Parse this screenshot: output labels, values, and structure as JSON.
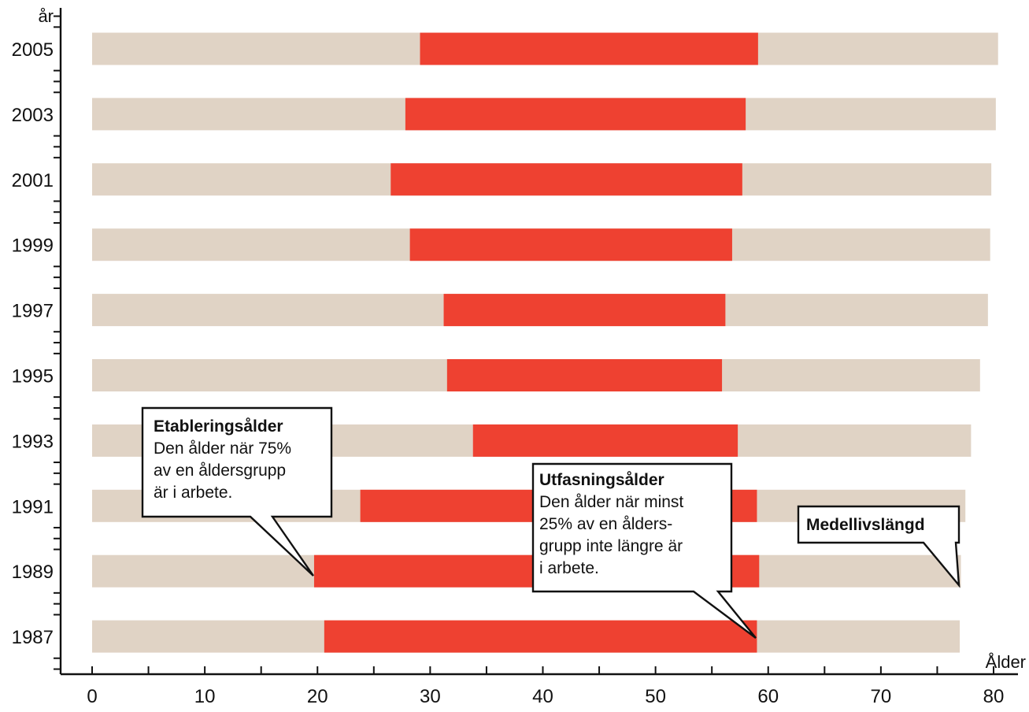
{
  "chart_data": {
    "type": "bar",
    "subtype": "floating-range",
    "xlabel": "Ålder",
    "ylabel": "år",
    "xlim": [
      0,
      80
    ],
    "x_ticks": [
      "0",
      "10",
      "20",
      "30",
      "40",
      "50",
      "60",
      "70",
      "80"
    ],
    "categories": [
      "2005",
      "2003",
      "2001",
      "1999",
      "1997",
      "1995",
      "1993",
      "1991",
      "1989",
      "1987"
    ],
    "series": [
      {
        "name": "Medellivslängd",
        "color": "#e0d3c5",
        "values": [
          80.4,
          80.2,
          79.8,
          79.7,
          79.5,
          78.8,
          78.0,
          77.5,
          77.1,
          77.0
        ]
      },
      {
        "name": "Etableringsålder",
        "color": "#ee4131",
        "values": [
          29.1,
          27.8,
          26.5,
          28.2,
          31.2,
          31.5,
          33.8,
          23.8,
          19.7,
          20.6
        ]
      },
      {
        "name": "Utfasningsålder",
        "color": "#ee4131",
        "values": [
          59.1,
          58.0,
          57.7,
          56.8,
          56.2,
          55.9,
          57.3,
          59.0,
          59.2,
          59.0
        ]
      }
    ],
    "grid": false,
    "legend": "none"
  },
  "annotations": [
    {
      "title": "Etableringsålder",
      "lines": [
        "Den ålder när 75%",
        "av en åldersgrupp",
        "är i arbete."
      ]
    },
    {
      "title": "Utfasningsålder",
      "lines": [
        "Den ålder när minst",
        "25% av en ålders-",
        "grupp inte längre är",
        "i arbete."
      ]
    },
    {
      "title": "Medellivslängd",
      "lines": []
    }
  ],
  "colors": {
    "background": "#ffffff",
    "life_expectancy": "#e0d3c5",
    "working_span": "#ee4131",
    "axis": "#111111",
    "text": "#111111",
    "callout_fill": "#ffffff",
    "callout_border": "#111111"
  }
}
